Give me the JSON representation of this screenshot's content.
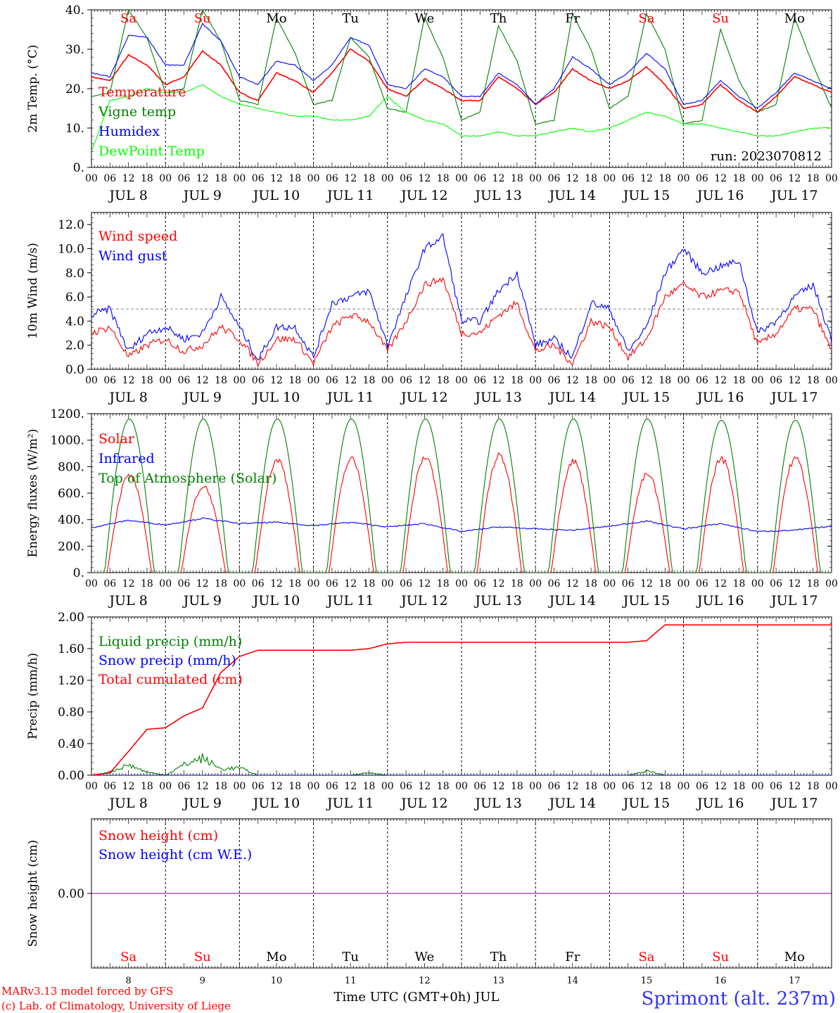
{
  "chart_data": [
    {
      "type": "line",
      "ylabel": "2m Temp. (°C)",
      "ylim": [
        0,
        40
      ],
      "yticks": [
        "0.",
        "10.",
        "20.",
        "30.",
        "40."
      ],
      "run_label": "run: 2023070812",
      "grid": "vertical day separators (dotted)",
      "legend_placement": "left",
      "series": [
        {
          "name": "Temperature",
          "color": "#ff0000",
          "x": [
            0,
            6,
            12,
            18,
            24,
            30,
            36,
            42,
            48,
            54,
            60,
            66,
            72,
            78,
            84,
            90,
            96,
            102,
            108,
            114,
            120,
            126,
            132,
            138,
            144,
            150,
            156,
            162,
            168,
            174,
            180,
            186,
            192,
            198,
            204,
            210,
            216,
            222,
            228,
            234,
            240
          ],
          "values": [
            23,
            22,
            28.5,
            26,
            21,
            23,
            29.5,
            26,
            19,
            17,
            24,
            22,
            19,
            24,
            30,
            27,
            20,
            18,
            22.5,
            20,
            17,
            17,
            23,
            20,
            16,
            19,
            25,
            22,
            20,
            22,
            25.5,
            21,
            15,
            16,
            21,
            17,
            14,
            18,
            23,
            21,
            19
          ]
        },
        {
          "name": "Vigne temp",
          "color": "#008000",
          "x": [
            0,
            6,
            12,
            18,
            24,
            30,
            36,
            42,
            48,
            54,
            60,
            66,
            72,
            78,
            84,
            90,
            96,
            102,
            108,
            114,
            120,
            126,
            132,
            138,
            144,
            150,
            156,
            162,
            168,
            174,
            180,
            186,
            192,
            198,
            204,
            210,
            216,
            222,
            228,
            234,
            240
          ],
          "values": [
            18,
            19,
            40,
            33,
            19,
            20,
            40,
            32,
            17,
            16,
            38,
            29,
            16,
            17,
            33,
            28,
            15,
            14,
            38,
            28,
            12,
            14,
            36,
            27,
            11,
            12,
            39,
            30,
            15,
            18,
            39,
            30,
            11,
            12,
            35,
            22,
            14,
            16,
            38,
            26,
            15
          ]
        },
        {
          "name": "Humidex",
          "color": "#0000ff",
          "x": [
            0,
            6,
            12,
            18,
            24,
            30,
            36,
            42,
            48,
            54,
            60,
            66,
            72,
            78,
            84,
            90,
            96,
            102,
            108,
            114,
            120,
            126,
            132,
            138,
            144,
            150,
            156,
            162,
            168,
            174,
            180,
            186,
            192,
            198,
            204,
            210,
            216,
            222,
            228,
            234,
            240
          ],
          "values": [
            24,
            23,
            33.5,
            33,
            26,
            26,
            36.5,
            32,
            23,
            21,
            27,
            26,
            22,
            26,
            33,
            31,
            21,
            20,
            25,
            23,
            18,
            18,
            24,
            21,
            16,
            20,
            28,
            25,
            21,
            24,
            29,
            25,
            16,
            17,
            22,
            18,
            15,
            19,
            24,
            22,
            20
          ]
        },
        {
          "name": "DewPoint Temp",
          "color": "#00ff00",
          "x": [
            0,
            6,
            12,
            18,
            24,
            30,
            36,
            42,
            48,
            54,
            60,
            66,
            72,
            78,
            84,
            90,
            96,
            102,
            108,
            114,
            120,
            126,
            132,
            138,
            144,
            150,
            156,
            162,
            168,
            174,
            180,
            186,
            192,
            198,
            204,
            210,
            216,
            222,
            228,
            234,
            240
          ],
          "values": [
            4,
            17,
            18,
            20,
            19,
            19,
            21,
            18,
            16,
            15,
            14,
            13,
            13,
            12,
            12,
            13,
            18,
            14,
            12,
            11,
            8,
            8,
            9,
            8,
            8,
            9,
            10,
            9,
            10,
            12,
            14,
            13,
            11,
            11,
            10,
            9,
            8,
            8,
            9,
            10,
            10
          ]
        }
      ]
    },
    {
      "type": "line",
      "ylabel": "10m Wind (m/s)",
      "ylim": [
        0,
        13
      ],
      "yticks": [
        "0.0",
        "2.0",
        "4.0",
        "6.0",
        "8.0",
        "10.0",
        "12.0"
      ],
      "reference_line": 5,
      "legend_placement": "left",
      "series": [
        {
          "name": "Wind speed",
          "color": "#ff0000",
          "x": [
            0,
            6,
            12,
            18,
            24,
            30,
            36,
            42,
            48,
            54,
            60,
            66,
            72,
            78,
            84,
            90,
            96,
            102,
            108,
            114,
            120,
            126,
            132,
            138,
            144,
            150,
            156,
            162,
            168,
            174,
            180,
            186,
            192,
            198,
            204,
            210,
            216,
            222,
            228,
            234,
            240
          ],
          "values": [
            3,
            3.5,
            1,
            2,
            2.5,
            1.5,
            2,
            3.5,
            2.5,
            0.5,
            2.5,
            2.5,
            0.5,
            3.5,
            4.5,
            4,
            1.5,
            4,
            7,
            7.5,
            3,
            3,
            4.5,
            5.5,
            1.5,
            2,
            0.5,
            4,
            3.5,
            1,
            2.5,
            6,
            7,
            6,
            6.5,
            6.5,
            2,
            3,
            5,
            5,
            1.5
          ]
        },
        {
          "name": "Wind gust",
          "color": "#0000ff",
          "x": [
            0,
            6,
            12,
            18,
            24,
            30,
            36,
            42,
            48,
            54,
            60,
            66,
            72,
            78,
            84,
            90,
            96,
            102,
            108,
            114,
            120,
            126,
            132,
            138,
            144,
            150,
            156,
            162,
            168,
            174,
            180,
            186,
            192,
            198,
            204,
            210,
            216,
            222,
            228,
            234,
            240
          ],
          "values": [
            4.5,
            5,
            1.5,
            3,
            3.5,
            2.5,
            3,
            6,
            3.5,
            0.8,
            3.5,
            3.5,
            1,
            5.5,
            6,
            6.5,
            2,
            6,
            10,
            11,
            4,
            4,
            6.5,
            8,
            2,
            2.5,
            1,
            5.5,
            5,
            1.5,
            3.5,
            8,
            10,
            8,
            8.5,
            9,
            3,
            4,
            6,
            7,
            2.5
          ]
        }
      ]
    },
    {
      "type": "line",
      "ylabel": "Energy fluxes (W/m²)",
      "ylim": [
        0,
        1200
      ],
      "yticks": [
        "0.",
        "200.",
        "400.",
        "600.",
        "800.",
        "1000.",
        "1200."
      ],
      "legend_placement": "left",
      "series": [
        {
          "name": "Solar",
          "color": "#ff0000",
          "daily_peak": [
            730,
            650,
            850,
            855,
            870,
            880,
            840,
            740,
            860,
            860
          ]
        },
        {
          "name": "Infrared",
          "color": "#0000ff",
          "x": [
            0,
            12,
            24,
            36,
            48,
            60,
            72,
            84,
            96,
            108,
            120,
            132,
            144,
            156,
            168,
            180,
            192,
            204,
            216,
            228,
            240
          ],
          "values": [
            340,
            395,
            360,
            410,
            370,
            380,
            355,
            380,
            345,
            370,
            310,
            345,
            330,
            320,
            350,
            390,
            330,
            370,
            310,
            320,
            350
          ]
        },
        {
          "name": "Top of Atmosphere (Solar)",
          "color": "#008000",
          "daily_peak": [
            1160,
            1160,
            1160,
            1160,
            1160,
            1160,
            1160,
            1160,
            1150,
            1150
          ]
        }
      ]
    },
    {
      "type": "line",
      "ylabel": "Precip (mm/h)",
      "ylim": [
        0,
        2
      ],
      "yticks": [
        "0.00",
        "0.40",
        "0.80",
        "1.20",
        "1.60",
        "2.00"
      ],
      "legend_placement": "left",
      "series": [
        {
          "name": "Liquid precip (mm/h)",
          "color": "#008000",
          "x": [
            0,
            6,
            12,
            18,
            24,
            30,
            36,
            42,
            48,
            54,
            60,
            66,
            72,
            78,
            84,
            90,
            96,
            102,
            108,
            114,
            120,
            126,
            132,
            138,
            144,
            150,
            156,
            162,
            168,
            174,
            180,
            186,
            192,
            198,
            204,
            210,
            216,
            222,
            228,
            234,
            240
          ],
          "values": [
            0,
            0.05,
            0.17,
            0.05,
            0,
            0.17,
            0.28,
            0.1,
            0.12,
            0,
            0,
            0,
            0,
            0,
            0,
            0.04,
            0,
            0,
            0,
            0,
            0,
            0,
            0,
            0,
            0,
            0,
            0,
            0,
            0,
            0,
            0.07,
            0,
            0,
            0,
            0,
            0,
            0,
            0,
            0,
            0,
            0
          ]
        },
        {
          "name": "Snow precip (mm/h)",
          "color": "#0000ff",
          "x": [
            0,
            240
          ],
          "values": [
            0,
            0
          ]
        },
        {
          "name": "Total cumulated (cm)",
          "color": "#ff0000",
          "x": [
            0,
            6,
            12,
            18,
            24,
            30,
            36,
            42,
            48,
            54,
            60,
            66,
            72,
            78,
            84,
            90,
            96,
            102,
            108,
            114,
            120,
            126,
            132,
            138,
            144,
            150,
            156,
            162,
            168,
            174,
            180,
            186,
            192,
            198,
            204,
            210,
            216,
            222,
            228,
            234,
            240
          ],
          "values": [
            0,
            0.03,
            0.3,
            0.58,
            0.6,
            0.75,
            0.85,
            1.3,
            1.5,
            1.58,
            1.58,
            1.58,
            1.58,
            1.58,
            1.58,
            1.6,
            1.66,
            1.68,
            1.68,
            1.68,
            1.68,
            1.68,
            1.68,
            1.68,
            1.68,
            1.68,
            1.68,
            1.68,
            1.68,
            1.68,
            1.7,
            1.9,
            1.9,
            1.9,
            1.9,
            1.9,
            1.9,
            1.9,
            1.9,
            1.9,
            1.9
          ]
        }
      ]
    },
    {
      "type": "line",
      "ylabel": "Snow height (cm)",
      "yticks": [
        "0.00"
      ],
      "legend_placement": "left",
      "series": [
        {
          "name": "Snow height (cm)",
          "color": "#ff0000",
          "x": [
            0,
            240
          ],
          "values": [
            0,
            0
          ]
        },
        {
          "name": "Snow height (cm W.E.)",
          "color": "#0000ff",
          "x": [
            0,
            240
          ],
          "values": [
            0,
            0
          ]
        }
      ]
    }
  ],
  "days": [
    {
      "abbr": "Sa",
      "date": "JUL  8",
      "num": "8",
      "weekend": true
    },
    {
      "abbr": "Su",
      "date": "JUL  9",
      "num": "9",
      "weekend": true
    },
    {
      "abbr": "Mo",
      "date": "JUL 10",
      "num": "10",
      "weekend": false
    },
    {
      "abbr": "Tu",
      "date": "JUL 11",
      "num": "11",
      "weekend": false
    },
    {
      "abbr": "We",
      "date": "JUL 12",
      "num": "12",
      "weekend": false
    },
    {
      "abbr": "Th",
      "date": "JUL 13",
      "num": "13",
      "weekend": false
    },
    {
      "abbr": "Fr",
      "date": "JUL 14",
      "num": "14",
      "weekend": false
    },
    {
      "abbr": "Sa",
      "date": "JUL 15",
      "num": "15",
      "weekend": true
    },
    {
      "abbr": "Su",
      "date": "JUL 16",
      "num": "16",
      "weekend": true
    },
    {
      "abbr": "Mo",
      "date": "JUL 17",
      "num": "17",
      "weekend": false
    }
  ],
  "hour_ticks": [
    "00",
    "06",
    "12",
    "18"
  ],
  "last_hour_tick": "00",
  "xlabel": "Time UTC (GMT+0h) JUL",
  "credit_line1": "MARv3.13 model forced by GFS",
  "credit_line2": "(c) Lab. of Climatology, University of Liege",
  "location": "Sprimont (alt. 237m)",
  "colors": {
    "weekend": "#ff0000",
    "weekday": "#000000",
    "location": "#3030ff",
    "axis": "#000000"
  }
}
